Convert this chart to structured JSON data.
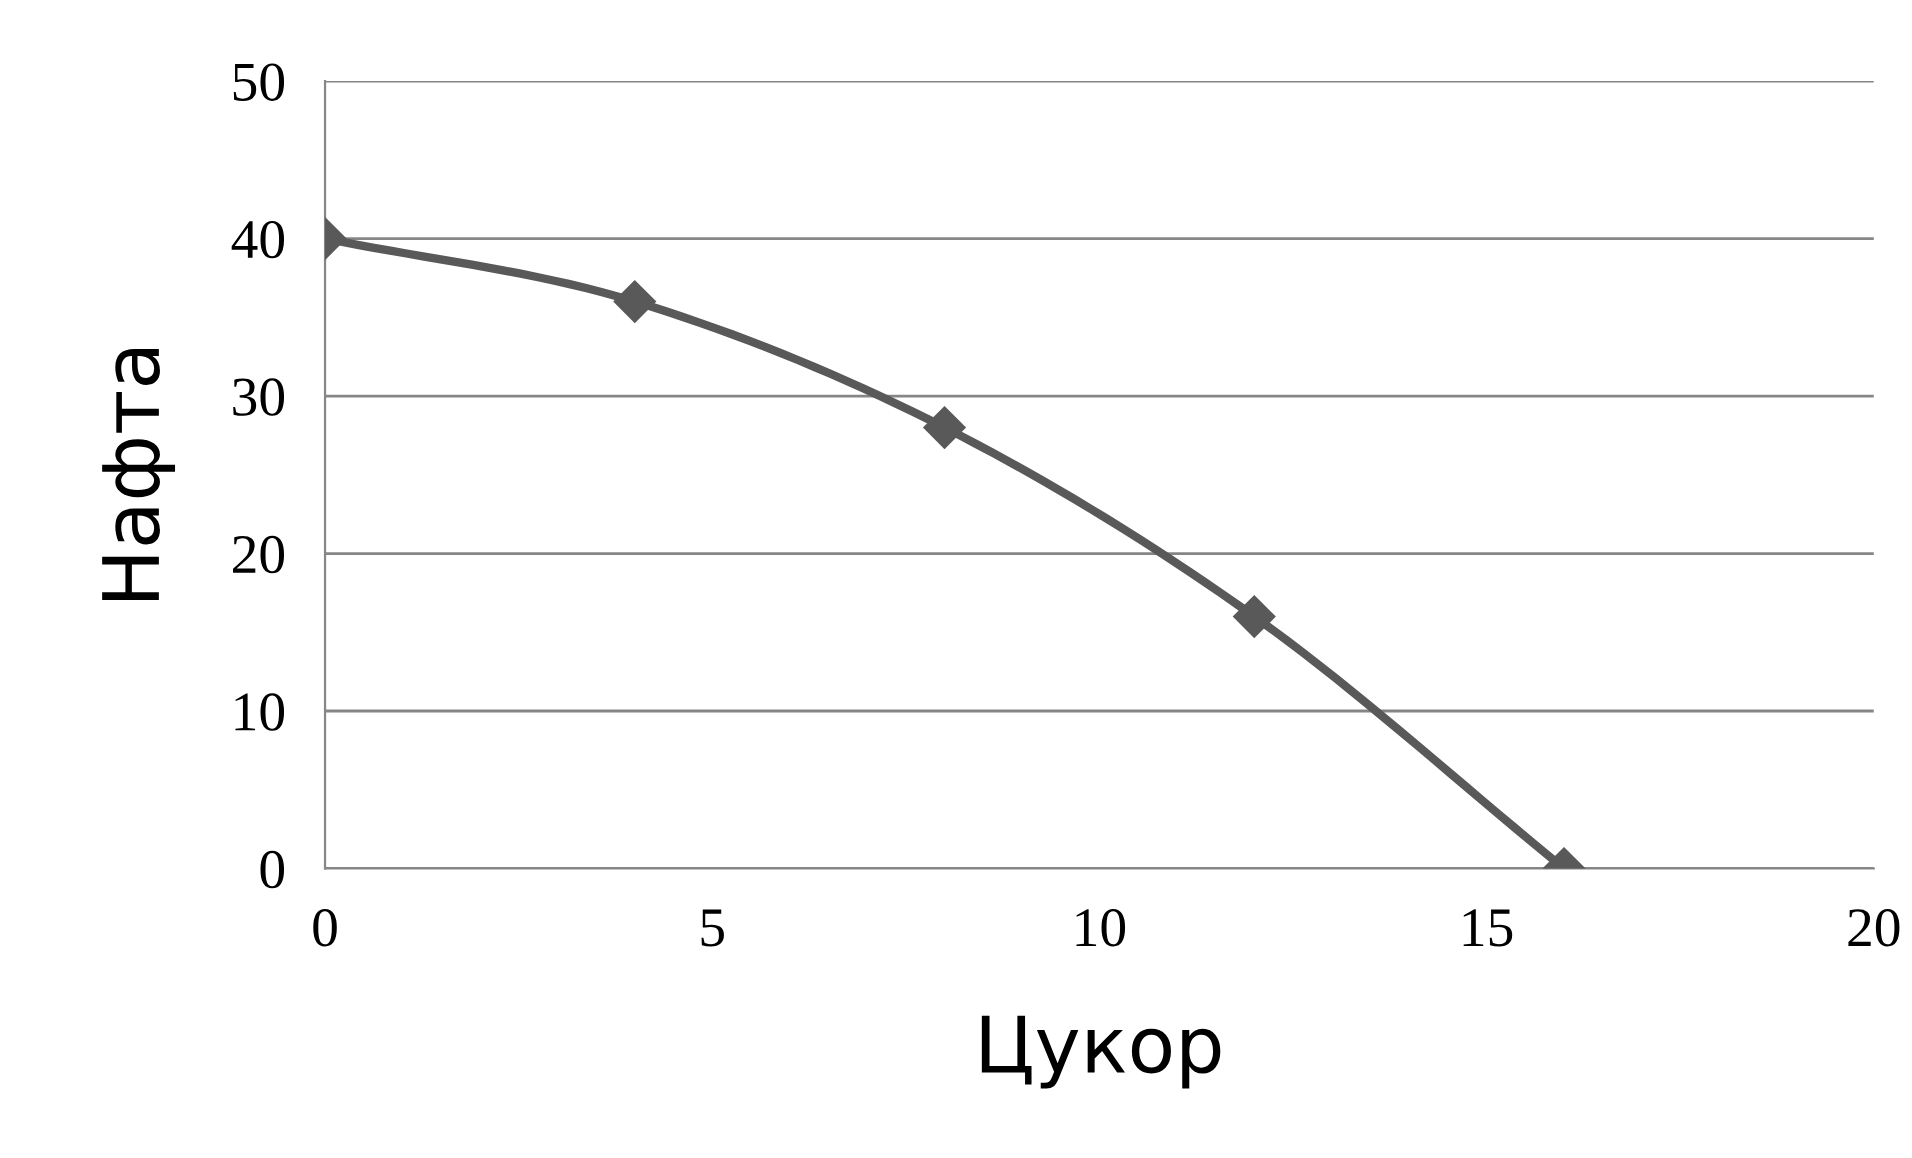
{
  "chart_data": {
    "type": "line",
    "xlabel": "Цукор",
    "ylabel": "Нафта",
    "x": [
      0,
      4,
      8,
      12,
      16
    ],
    "series": [
      {
        "color": "#595959",
        "values": [
          40,
          36,
          28,
          16,
          0
        ]
      }
    ],
    "xlim": [
      0,
      20
    ],
    "xticks": [
      0,
      5,
      10,
      15,
      20
    ],
    "ylim": [
      0,
      50
    ],
    "yticks": [
      0,
      10,
      20,
      30,
      40,
      50
    ],
    "grid": "y",
    "marker": "diamond",
    "line_style": "solid",
    "legend": false
  }
}
